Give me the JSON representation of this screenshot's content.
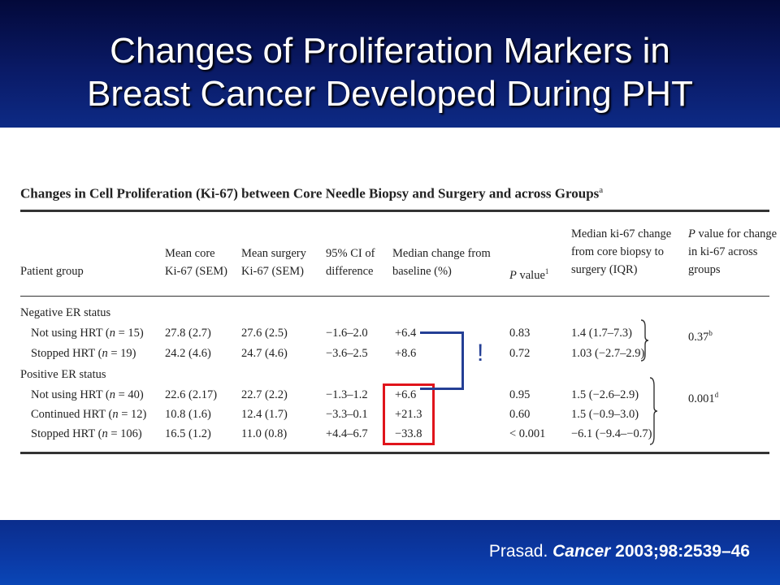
{
  "slide": {
    "title_line1": "Changes of Proliferation Markers in",
    "title_line2": "Breast Cancer Developed During PHT",
    "citation_author": "Prasad.",
    "citation_journal": "Cancer",
    "citation_rest": "2003;98:2539–46"
  },
  "table": {
    "caption": "Changes in Cell Proliferation (Ki-67) between Core Needle Biopsy and Surgery and across Groups",
    "caption_sup": "a",
    "headers": {
      "patient_group": "Patient group",
      "mean_core_1": "Mean core",
      "mean_core_2": "Ki-67 (SEM)",
      "mean_surgery_1": "Mean surgery",
      "mean_surgery_2": "Ki-67 (SEM)",
      "ci_1": "95% CI of",
      "ci_2": "difference",
      "median_change_1": "Median change from",
      "median_change_2": "baseline (%)",
      "p_value": "value",
      "p_value_sup": "1",
      "median_ki_1": "Median ki-67 change",
      "median_ki_2": "from core biopsy to",
      "median_ki_3": "surgery (IQR)",
      "p_change_1": "value for change",
      "p_change_2": "in ki-67 across",
      "p_change_3": "groups"
    },
    "groups": {
      "negative": "Negative ER status",
      "positive": "Positive ER status"
    },
    "rows": [
      {
        "label_pre": "Not using HRT (",
        "n": "n",
        "label_post": " = 15)",
        "core": "27.8 (2.7)",
        "surgery": "27.6 (2.5)",
        "ci": "−1.6–2.0",
        "median": "+6.4",
        "p": "0.83",
        "ki": "1.4 (1.7–7.3)"
      },
      {
        "label_pre": "Stopped HRT (",
        "n": "n",
        "label_post": " = 19)",
        "core": "24.2 (4.6)",
        "surgery": "24.7 (4.6)",
        "ci": "−3.6–2.5",
        "median": "+8.6",
        "p": "0.72",
        "ki": "1.03 (−2.7–2.9)"
      },
      {
        "label_pre": "Not using HRT (",
        "n": "n",
        "label_post": " = 40)",
        "core": "22.6 (2.17)",
        "surgery": "22.7 (2.2)",
        "ci": "−1.3–1.2",
        "median": "+6.6",
        "p": "0.95",
        "ki": "1.5 (−2.6–2.9)"
      },
      {
        "label_pre": "Continued HRT (",
        "n": "n",
        "label_post": " = 12)",
        "core": "10.8 (1.6)",
        "surgery": "12.4 (1.7)",
        "ci": "−3.3–0.1",
        "median": "+21.3",
        "p": "0.60",
        "ki": "1.5 (−0.9–3.0)"
      },
      {
        "label_pre": "Stopped HRT (",
        "n": "n",
        "label_post": " = 106)",
        "core": "16.5 (1.2)",
        "surgery": "11.0 (0.8)",
        "ci": "+4.4–6.7",
        "median": "−33.8",
        "p": "< 0.001",
        "ki": "−6.1 (−9.4–−0.7)"
      }
    ],
    "group_p_neg": "0.37",
    "group_p_neg_sup": "b",
    "group_p_pos": "0.001",
    "group_p_pos_sup": "d"
  },
  "annotation": {
    "exclamation": "!",
    "box_color": "#e0141b",
    "bracket_color": "#243f95"
  }
}
